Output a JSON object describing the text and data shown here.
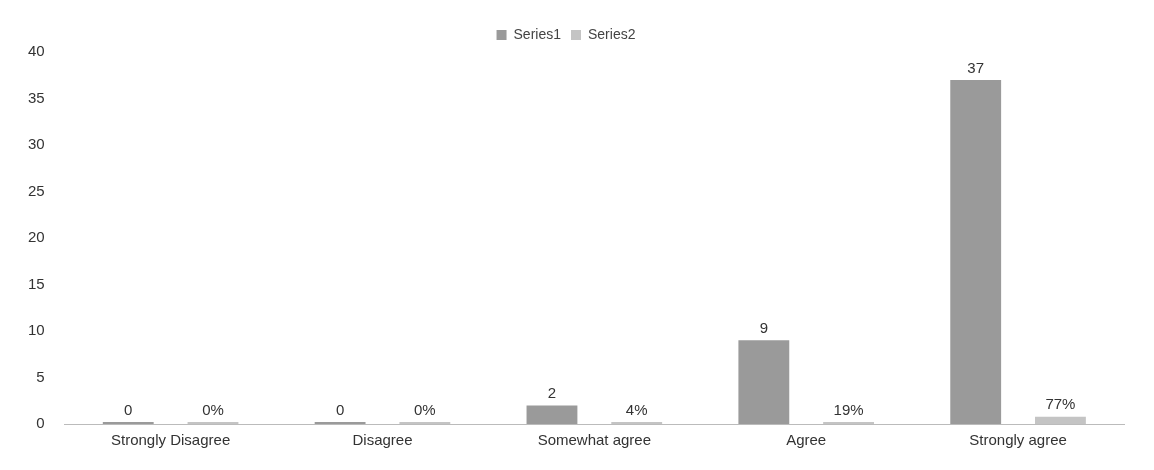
{
  "chart_data": {
    "type": "bar",
    "categories": [
      "Strongly Disagree",
      "Disagree",
      "Somewhat agree",
      "Agree",
      "Strongly agree"
    ],
    "series": [
      {
        "name": "Series1",
        "color": "#9a9a9a",
        "values": [
          0,
          0,
          2,
          9,
          37
        ],
        "value_labels": [
          "0",
          "0",
          "2",
          "9",
          "37"
        ]
      },
      {
        "name": "Series2",
        "color": "#c4c4c4",
        "values": [
          0,
          0,
          0.04,
          0.19,
          0.77
        ],
        "value_labels": [
          "0%",
          "0%",
          "4%",
          "19%",
          "77%"
        ]
      }
    ],
    "ylim": [
      0,
      40
    ],
    "yticks": [
      0,
      5,
      10,
      15,
      20,
      25,
      30,
      35,
      40
    ],
    "grid": false,
    "legend": "top"
  }
}
